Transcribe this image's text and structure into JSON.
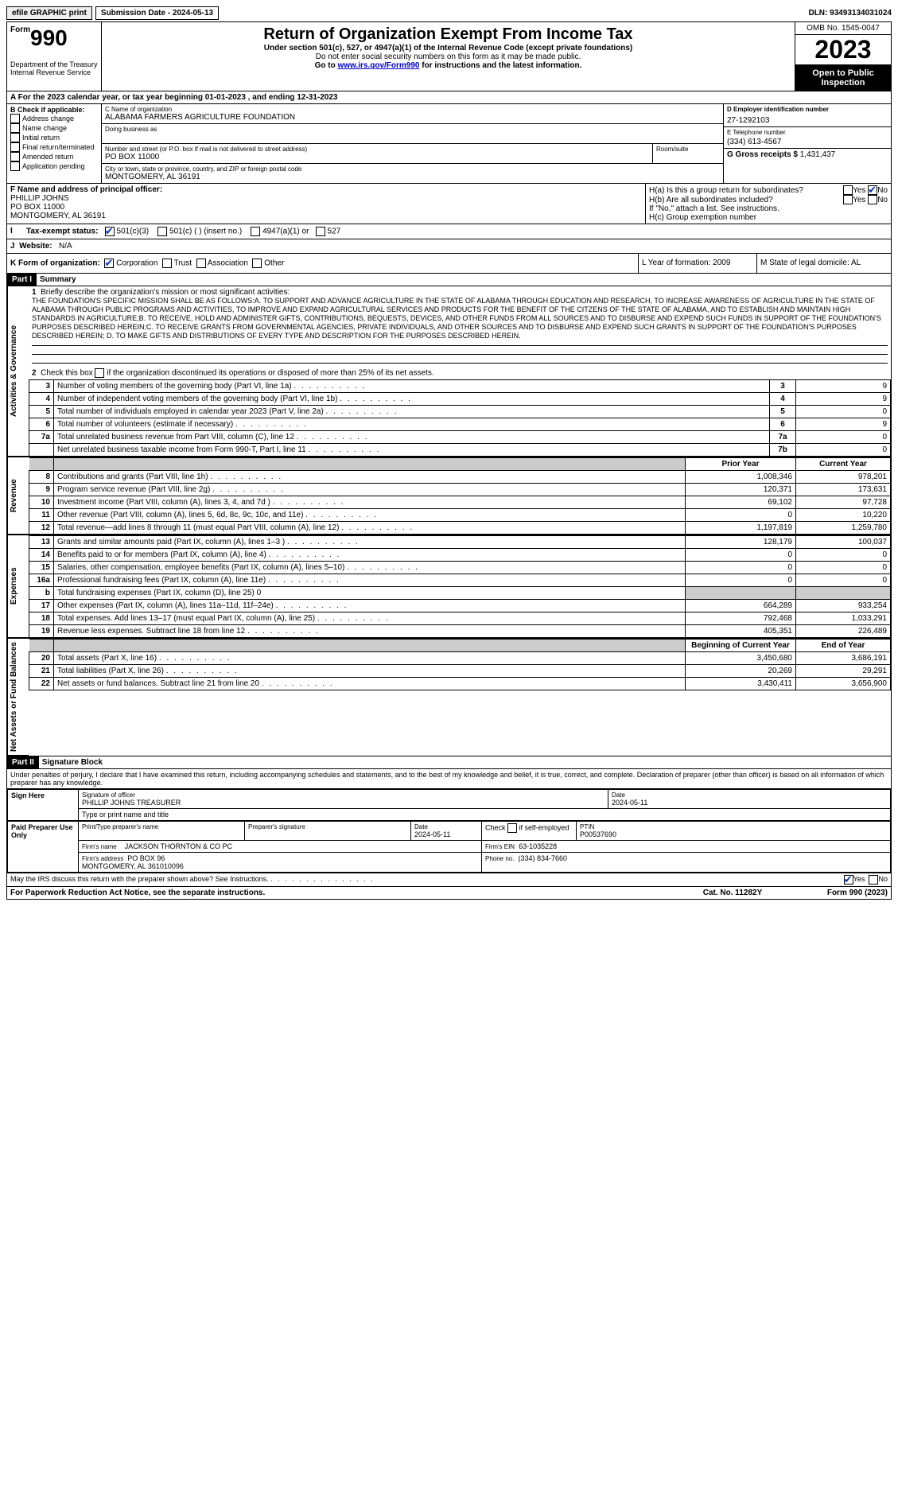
{
  "top": {
    "efile": "efile GRAPHIC print",
    "sub_date_label": "Submission Date - 2024-05-13",
    "dln": "DLN: 93493134031024"
  },
  "header": {
    "form_word": "Form",
    "form_num": "990",
    "title": "Return of Organization Exempt From Income Tax",
    "sub": "Under section 501(c), 527, or 4947(a)(1) of the Internal Revenue Code (except private foundations)",
    "sub2": "Do not enter social security numbers on this form as it may be made public.",
    "goto_pre": "Go to ",
    "goto_link": "www.irs.gov/Form990",
    "goto_post": " for instructions and the latest information.",
    "dept": "Department of the Treasury\nInternal Revenue Service",
    "omb": "OMB No. 1545-0047",
    "year": "2023",
    "open": "Open to Public Inspection"
  },
  "rowA": "A For the 2023 calendar year, or tax year beginning 01-01-2023   , and ending 12-31-2023",
  "B": {
    "title": "B Check if applicable:",
    "items": [
      "Address change",
      "Name change",
      "Initial return",
      "Final return/terminated",
      "Amended return",
      "Application pending"
    ]
  },
  "C": {
    "name_label": "C Name of organization",
    "name": "ALABAMA FARMERS AGRICULTURE FOUNDATION",
    "dba_label": "Doing business as",
    "street_label": "Number and street (or P.O. box if mail is not delivered to street address)",
    "room_label": "Room/suite",
    "street": "PO BOX 11000",
    "city_label": "City or town, state or province, country, and ZIP or foreign postal code",
    "city": "MONTGOMERY, AL  36191"
  },
  "D": {
    "ein_label": "D Employer identification number",
    "ein": "27-1292103",
    "phone_label": "E Telephone number",
    "phone": "(334) 613-4567",
    "gross_label": "G Gross receipts $",
    "gross": "1,431,437"
  },
  "F": {
    "label": "F  Name and address of principal officer:",
    "name": "PHILLIP JOHNS",
    "addr1": "PO BOX 11000",
    "addr2": "MONTGOMERY, AL  36191"
  },
  "H": {
    "a": "H(a)  Is this a group return for subordinates?",
    "b": "H(b)  Are all subordinates included?",
    "b_note": "If \"No,\" attach a list. See instructions.",
    "c": "H(c)  Group exemption number",
    "yes": "Yes",
    "no": "No"
  },
  "I": {
    "label": "Tax-exempt status:",
    "opt1": "501(c)(3)",
    "opt2": "501(c) (  ) (insert no.)",
    "opt3": "4947(a)(1) or",
    "opt4": "527"
  },
  "J": {
    "label": "Website:",
    "val": "N/A"
  },
  "K": {
    "label": "K Form of organization:",
    "opts": [
      "Corporation",
      "Trust",
      "Association",
      "Other"
    ],
    "L": "L Year of formation: 2009",
    "M": "M State of legal domicile: AL"
  },
  "part1": {
    "label": "Part I",
    "title": "Summary",
    "side_ag": "Activities & Governance",
    "side_rev": "Revenue",
    "side_exp": "Expenses",
    "side_net": "Net Assets or Fund Balances",
    "line1_label": "Briefly describe the organization's mission or most significant activities:",
    "mission": "THE FOUNDATION'S SPECIFIC MISSION SHALL BE AS FOLLOWS:A. TO SUPPORT AND ADVANCE AGRICULTURE IN THE STATE OF ALABAMA THROUGH EDUCATION AND RESEARCH, TO INCREASE AWARENESS OF AGRICULTURE IN THE STATE OF ALABAMA THROUGH PUBLIC PROGRAMS AND ACTIVITIES, TO IMPROVE AND EXPAND AGRICULTURAL SERVICES AND PRODUCTS FOR THE BENEFIT OF THE CITZENS OF THE STATE OF ALABAMA, AND TO ESTABLISH AND MAINTAIN HIGH STANDARDS IN AGRICULTURE;B. TO RECEIVE, HOLD AND ADMINISTER GIFTS, CONTRIBUTIONS, BEQUESTS, DEVICES, AND OTHER FUNDS FROM ALL SOURCES AND TO DISBURSE AND EXPEND SUCH FUNDS IN SUPPORT OF THE FOUNDATION'S PURPOSES DESCRIBED HEREIN;C. TO RECEIVE GRANTS FROM GOVERNMENTAL AGENCIES, PRIVATE INDIVIDUALS, AND OTHER SOURCES AND TO DISBURSE AND EXPEND SUCH GRANTS IN SUPPORT OF THE FOUNDATION'S PURPOSES DESCRIBED HEREIN; D. TO MAKE GIFTS AND DISTRIBUTIONS OF EVERY TYPE AND DESCRIPTION FOR THE PURPOSES DESCRIBED HEREIN.",
    "line2": "Check this box      if the organization discontinued its operations or disposed of more than 25% of its net assets.",
    "rows_ag": [
      {
        "n": "3",
        "d": "Number of voting members of the governing body (Part VI, line 1a)",
        "box": "3",
        "v": "9"
      },
      {
        "n": "4",
        "d": "Number of independent voting members of the governing body (Part VI, line 1b)",
        "box": "4",
        "v": "9"
      },
      {
        "n": "5",
        "d": "Total number of individuals employed in calendar year 2023 (Part V, line 2a)",
        "box": "5",
        "v": "0"
      },
      {
        "n": "6",
        "d": "Total number of volunteers (estimate if necessary)",
        "box": "6",
        "v": "9"
      },
      {
        "n": "7a",
        "d": "Total unrelated business revenue from Part VIII, column (C), line 12",
        "box": "7a",
        "v": "0"
      },
      {
        "n": "",
        "d": "Net unrelated business taxable income from Form 990-T, Part I, line 11",
        "box": "7b",
        "v": "0"
      }
    ],
    "col_prior": "Prior Year",
    "col_current": "Current Year",
    "rows_rev": [
      {
        "n": "8",
        "d": "Contributions and grants (Part VIII, line 1h)",
        "p": "1,008,346",
        "c": "978,201"
      },
      {
        "n": "9",
        "d": "Program service revenue (Part VIII, line 2g)",
        "p": "120,371",
        "c": "173,631"
      },
      {
        "n": "10",
        "d": "Investment income (Part VIII, column (A), lines 3, 4, and 7d )",
        "p": "69,102",
        "c": "97,728"
      },
      {
        "n": "11",
        "d": "Other revenue (Part VIII, column (A), lines 5, 6d, 8c, 9c, 10c, and 11e)",
        "p": "0",
        "c": "10,220"
      },
      {
        "n": "12",
        "d": "Total revenue—add lines 8 through 11 (must equal Part VIII, column (A), line 12)",
        "p": "1,197,819",
        "c": "1,259,780"
      }
    ],
    "rows_exp": [
      {
        "n": "13",
        "d": "Grants and similar amounts paid (Part IX, column (A), lines 1–3 )",
        "p": "128,179",
        "c": "100,037"
      },
      {
        "n": "14",
        "d": "Benefits paid to or for members (Part IX, column (A), line 4)",
        "p": "0",
        "c": "0"
      },
      {
        "n": "15",
        "d": "Salaries, other compensation, employee benefits (Part IX, column (A), lines 5–10)",
        "p": "0",
        "c": "0"
      },
      {
        "n": "16a",
        "d": "Professional fundraising fees (Part IX, column (A), line 11e)",
        "p": "0",
        "c": "0"
      },
      {
        "n": "b",
        "d": "Total fundraising expenses (Part IX, column (D), line 25) 0",
        "p": "",
        "c": "",
        "shaded": true
      },
      {
        "n": "17",
        "d": "Other expenses (Part IX, column (A), lines 11a–11d, 11f–24e)",
        "p": "664,289",
        "c": "933,254"
      },
      {
        "n": "18",
        "d": "Total expenses. Add lines 13–17 (must equal Part IX, column (A), line 25)",
        "p": "792,468",
        "c": "1,033,291"
      },
      {
        "n": "19",
        "d": "Revenue less expenses. Subtract line 18 from line 12",
        "p": "405,351",
        "c": "226,489"
      }
    ],
    "col_begin": "Beginning of Current Year",
    "col_end": "End of Year",
    "rows_net": [
      {
        "n": "20",
        "d": "Total assets (Part X, line 16)",
        "p": "3,450,680",
        "c": "3,686,191"
      },
      {
        "n": "21",
        "d": "Total liabilities (Part X, line 26)",
        "p": "20,269",
        "c": "29,291"
      },
      {
        "n": "22",
        "d": "Net assets or fund balances. Subtract line 21 from line 20",
        "p": "3,430,411",
        "c": "3,656,900"
      }
    ]
  },
  "part2": {
    "label": "Part II",
    "title": "Signature Block",
    "decl": "Under penalties of perjury, I declare that I have examined this return, including accompanying schedules and statements, and to the best of my knowledge and belief, it is true, correct, and complete. Declaration of preparer (other than officer) is based on all information of which preparer has any knowledge."
  },
  "sign": {
    "here": "Sign Here",
    "sig_label": "Signature of officer",
    "sig_name": "PHILLIP JOHNS  TREASURER",
    "sig_type": "Type or print name and title",
    "date_label": "Date",
    "date": "2024-05-11"
  },
  "prep": {
    "label": "Paid Preparer Use Only",
    "name_label": "Print/Type preparer's name",
    "sig_label": "Preparer's signature",
    "date_label": "Date",
    "date": "2024-05-11",
    "self_label": "Check        if self-employed",
    "ptin_label": "PTIN",
    "ptin": "P00537690",
    "firm_name_label": "Firm's name",
    "firm_name": "JACKSON THORNTON & CO PC",
    "firm_ein_label": "Firm's EIN",
    "firm_ein": "63-1035228",
    "firm_addr_label": "Firm's address",
    "firm_addr": "PO BOX 96\nMONTGOMERY, AL  361010096",
    "phone_label": "Phone no.",
    "phone": "(334) 834-7660"
  },
  "footer": {
    "discuss": "May the IRS discuss this return with the preparer shown above? See Instructions.",
    "yes": "Yes",
    "no": "No",
    "pra": "For Paperwork Reduction Act Notice, see the separate instructions.",
    "cat": "Cat. No. 11282Y",
    "form": "Form 990 (2023)"
  }
}
